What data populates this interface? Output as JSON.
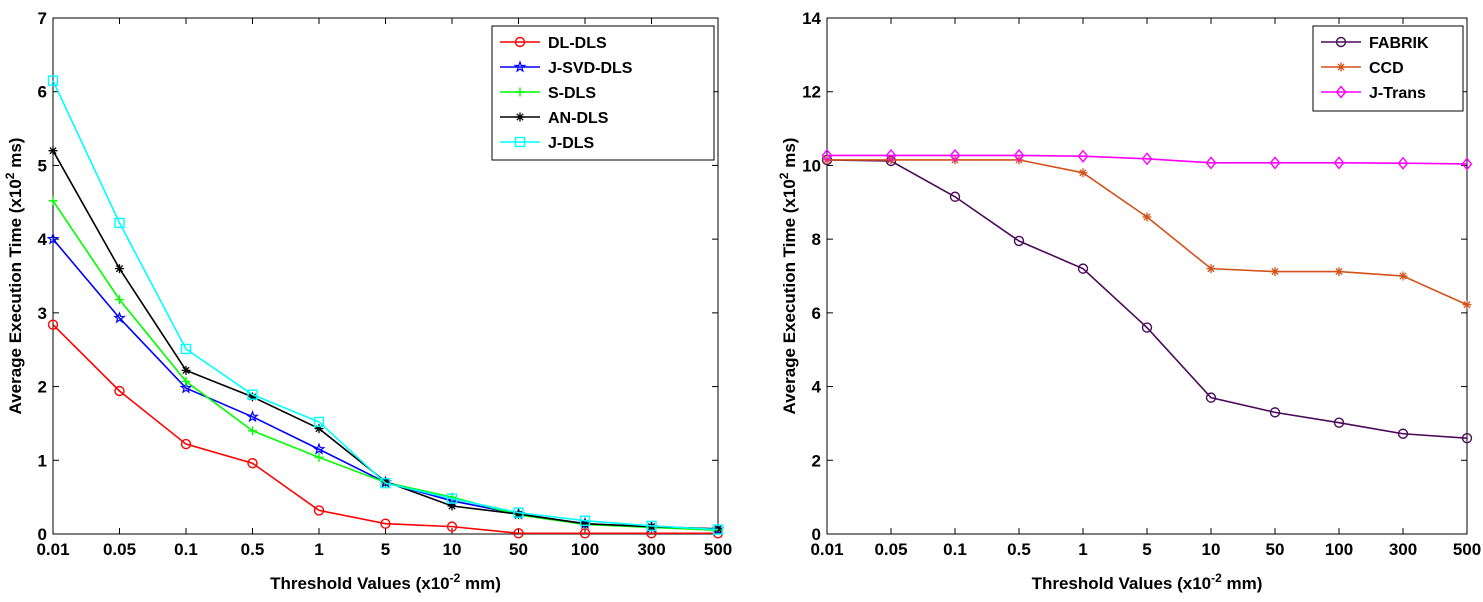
{
  "chart_data": [
    {
      "type": "line",
      "categories": [
        "0.01",
        "0.05",
        "0.1",
        "0.5",
        "1",
        "5",
        "10",
        "50",
        "100",
        "300",
        "500"
      ],
      "xlabel": "Threshold  Values (x10",
      "xlabel_sup": "-2",
      "xlabel_end": " mm)",
      "ylabel": "Average Execution Time (x10",
      "ylabel_sup": "2",
      "ylabel_end": " ms)",
      "ylim": [
        0,
        7
      ],
      "yticks": [
        "0",
        "1",
        "2",
        "3",
        "4",
        "5",
        "6",
        "7"
      ],
      "legend_position": "top-right",
      "series": [
        {
          "name": "DL-DLS",
          "color": "#ff0000",
          "marker": "circle",
          "values": [
            2.84,
            1.94,
            1.22,
            0.96,
            0.32,
            0.14,
            0.1,
            0.01,
            0.01,
            0.01,
            0.01
          ]
        },
        {
          "name": "J-SVD-DLS",
          "color": "#0000ff",
          "marker": "star",
          "values": [
            4.0,
            2.93,
            1.98,
            1.59,
            1.15,
            0.7,
            0.45,
            0.27,
            0.14,
            0.09,
            0.06
          ]
        },
        {
          "name": "S-DLS",
          "color": "#00ff00",
          "marker": "plus",
          "values": [
            4.52,
            3.18,
            2.07,
            1.4,
            1.04,
            0.7,
            0.5,
            0.26,
            0.13,
            0.09,
            0.05
          ]
        },
        {
          "name": "AN-DLS",
          "color": "#000000",
          "marker": "asterisk",
          "values": [
            5.2,
            3.6,
            2.22,
            1.86,
            1.43,
            0.71,
            0.38,
            0.27,
            0.14,
            0.1,
            0.07
          ]
        },
        {
          "name": "J-DLS",
          "color": "#00ffff",
          "marker": "square",
          "values": [
            6.15,
            4.22,
            2.51,
            1.89,
            1.52,
            0.69,
            0.48,
            0.29,
            0.18,
            0.11,
            0.06
          ]
        }
      ]
    },
    {
      "type": "line",
      "categories": [
        "0.01",
        "0.05",
        "0.1",
        "0.5",
        "1",
        "5",
        "10",
        "50",
        "100",
        "300",
        "500"
      ],
      "xlabel": "Threshold  Values (x10",
      "xlabel_sup": "-2",
      "xlabel_end": " mm)",
      "ylabel": "Average Execution Time (x10",
      "ylabel_sup": "2",
      "ylabel_end": " ms)",
      "ylim": [
        0,
        14
      ],
      "yticks": [
        "0",
        "2",
        "4",
        "6",
        "8",
        "10",
        "12",
        "14"
      ],
      "legend_position": "top-right",
      "series": [
        {
          "name": "FABRIK",
          "color": "#4b0a5a",
          "marker": "circle",
          "values": [
            10.15,
            10.12,
            9.15,
            7.95,
            7.2,
            5.6,
            3.7,
            3.3,
            3.02,
            2.72,
            2.6
          ]
        },
        {
          "name": "CCD",
          "color": "#d2521a",
          "marker": "asterisk",
          "values": [
            10.15,
            10.15,
            10.15,
            10.15,
            9.8,
            8.6,
            7.2,
            7.12,
            7.12,
            7.0,
            6.22
          ]
        },
        {
          "name": "J-Trans",
          "color": "#ff00ff",
          "marker": "diamond",
          "values": [
            10.27,
            10.27,
            10.27,
            10.27,
            10.25,
            10.18,
            10.07,
            10.07,
            10.07,
            10.06,
            10.04
          ]
        }
      ]
    }
  ]
}
